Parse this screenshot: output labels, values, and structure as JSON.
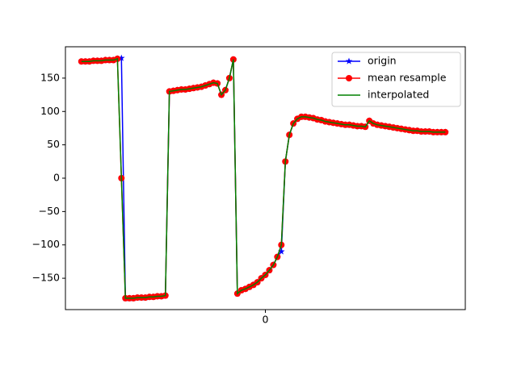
{
  "chart_data": {
    "type": "line",
    "x": [
      -46,
      -45,
      -44,
      -43,
      -42,
      -41,
      -40,
      -39,
      -38,
      -37,
      -36,
      -35,
      -34,
      -33,
      -32,
      -31,
      -30,
      -29,
      -28,
      -27,
      -26,
      -25,
      -24,
      -23,
      -22,
      -21,
      -20,
      -19,
      -18,
      -17,
      -16,
      -15,
      -14,
      -13,
      -12,
      -11,
      -10,
      -9,
      -8,
      -7,
      -6,
      -5,
      -4,
      -3,
      -2,
      -1,
      0,
      1,
      2,
      3,
      4,
      5,
      6,
      7,
      8,
      9,
      10,
      11,
      12,
      13,
      14,
      15,
      16,
      17,
      18,
      19,
      20,
      21,
      22,
      23,
      24,
      25,
      26,
      27,
      28,
      29,
      30,
      31,
      32,
      33,
      34,
      35,
      36,
      37,
      38,
      39,
      40,
      41,
      42,
      43,
      44,
      45
    ],
    "series": [
      {
        "name": "origin",
        "color": "#0000ff",
        "marker": "*",
        "values": [
          175,
          175,
          175,
          176,
          176,
          176,
          177,
          177,
          177,
          179,
          180,
          -180,
          -180,
          -180,
          -179,
          -179,
          -179,
          -178,
          -178,
          -177,
          -177,
          -176,
          130,
          131,
          132,
          133,
          133,
          134,
          135,
          136,
          137,
          139,
          141,
          143,
          142,
          125,
          132,
          150,
          178,
          -173,
          -168,
          -166,
          -163,
          -160,
          -156,
          -150,
          -145,
          -138,
          -130,
          -118,
          -110,
          25,
          65,
          82,
          89,
          92,
          92,
          91,
          90,
          88,
          87,
          85,
          84,
          83,
          82,
          81,
          80,
          80,
          79,
          78,
          78,
          77,
          86,
          82,
          80,
          79,
          78,
          77,
          76,
          75,
          74,
          73,
          72,
          71,
          71,
          70,
          70,
          70,
          69,
          69,
          69,
          69
        ]
      },
      {
        "name": "mean resample",
        "color": "#ff0000",
        "marker": "o",
        "values": [
          175,
          175,
          175,
          176,
          176,
          176,
          177,
          177,
          177,
          179,
          0,
          -180,
          -180,
          -180,
          -179,
          -179,
          -179,
          -178,
          -178,
          -177,
          -177,
          -176,
          130,
          131,
          132,
          133,
          133,
          134,
          135,
          136,
          137,
          139,
          141,
          143,
          142,
          125,
          132,
          150,
          178,
          -173,
          -168,
          -166,
          -163,
          -160,
          -156,
          -150,
          -145,
          -138,
          -130,
          -118,
          -100,
          25,
          65,
          82,
          89,
          92,
          92,
          91,
          90,
          88,
          87,
          85,
          84,
          83,
          82,
          81,
          80,
          80,
          79,
          78,
          78,
          77,
          86,
          82,
          80,
          79,
          78,
          77,
          76,
          75,
          74,
          73,
          72,
          71,
          71,
          70,
          70,
          70,
          69,
          69,
          69,
          69
        ]
      },
      {
        "name": "interpolated",
        "color": "#008000",
        "marker": null,
        "values": [
          175,
          175,
          175,
          176,
          176,
          176,
          177,
          177,
          177,
          179,
          0,
          -180,
          -180,
          -180,
          -179,
          -179,
          -179,
          -178,
          -178,
          -177,
          -177,
          -176,
          130,
          131,
          132,
          133,
          133,
          134,
          135,
          136,
          137,
          139,
          141,
          143,
          142,
          125,
          132,
          150,
          178,
          -173,
          -168,
          -166,
          -163,
          -160,
          -156,
          -150,
          -145,
          -138,
          -130,
          -118,
          -100,
          25,
          65,
          82,
          89,
          92,
          92,
          91,
          90,
          88,
          87,
          85,
          84,
          83,
          82,
          81,
          80,
          80,
          79,
          78,
          78,
          77,
          86,
          82,
          80,
          79,
          78,
          77,
          76,
          75,
          74,
          73,
          72,
          71,
          71,
          70,
          70,
          70,
          69,
          69,
          69,
          69
        ]
      }
    ],
    "xlim": [
      -50,
      50
    ],
    "xticks": [
      0
    ],
    "ylim": [
      -197,
      197
    ],
    "yticks": [
      {
        "value": -150,
        "label": "−150"
      },
      {
        "value": -100,
        "label": "−100"
      },
      {
        "value": -50,
        "label": "−50"
      },
      0,
      50,
      100,
      150
    ],
    "legend": "upper right"
  }
}
